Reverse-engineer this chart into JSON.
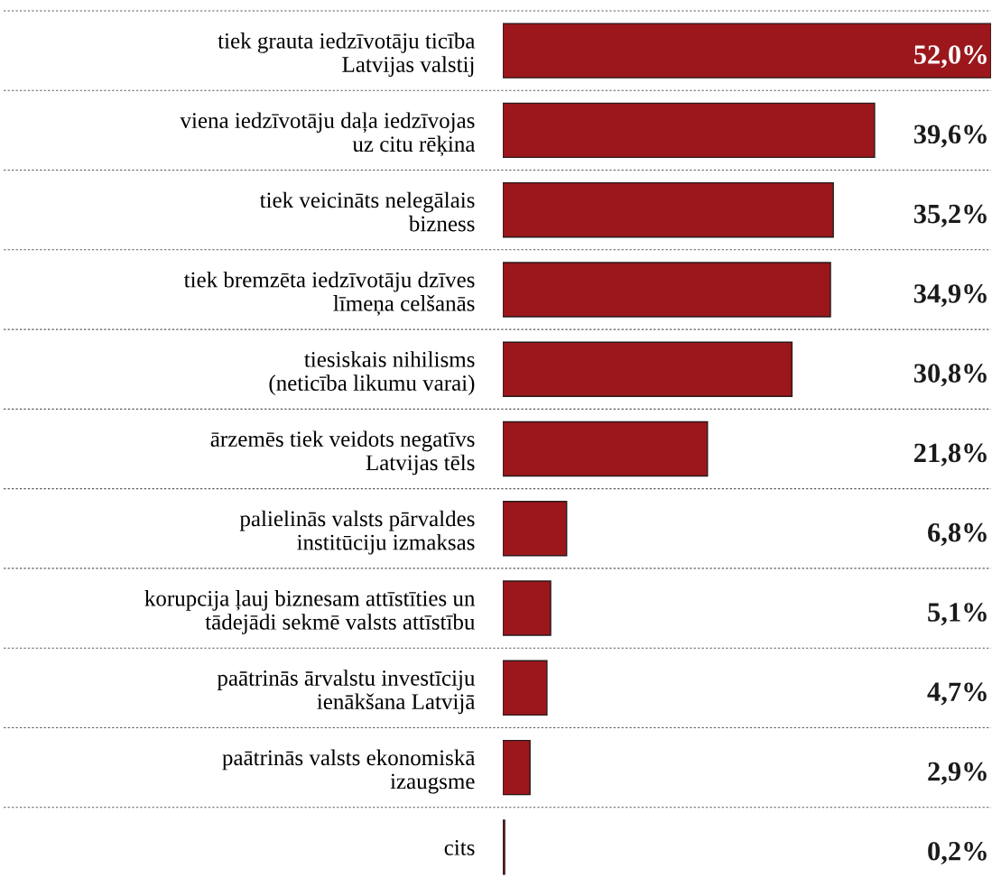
{
  "chart_data": {
    "type": "bar",
    "orientation": "horizontal",
    "categories": [
      "tiek grauta iedzīvotāju ticība\nLatvijas valstij",
      "viena iedzīvotāju daļa iedzīvojas\nuz citu rēķina",
      "tiek veicināts nelegālais\nbizness",
      "tiek bremzēta iedzīvotāju dzīves\nlīmeņa celšanās",
      "tiesiskais nihilisms\n(neticība likumu varai)",
      "ārzemēs tiek veidots negatīvs\nLatvijas tēls",
      "palielinās valsts pārvaldes\ninstitūciju izmaksas",
      "korupcija ļauj biznesam attīstīties un\ntādejādi sekmē valsts attīstību",
      "paātrinās ārvalstu investīciju\nienākšana Latvijā",
      "paātrinās valsts ekonomiskā\nizaugsme",
      "cits"
    ],
    "values": [
      52.0,
      39.6,
      35.2,
      34.9,
      30.8,
      21.8,
      6.8,
      5.1,
      4.7,
      2.9,
      0.2
    ],
    "value_labels": [
      "52,0%",
      "39,6%",
      "35,2%",
      "34,9%",
      "30,8%",
      "21,8%",
      "6,8%",
      "5,1%",
      "4,7%",
      "2,9%",
      "0,2%"
    ],
    "color": "#9b171c",
    "xlim": [
      0,
      52
    ],
    "grid": true,
    "tick_labels": "y"
  }
}
